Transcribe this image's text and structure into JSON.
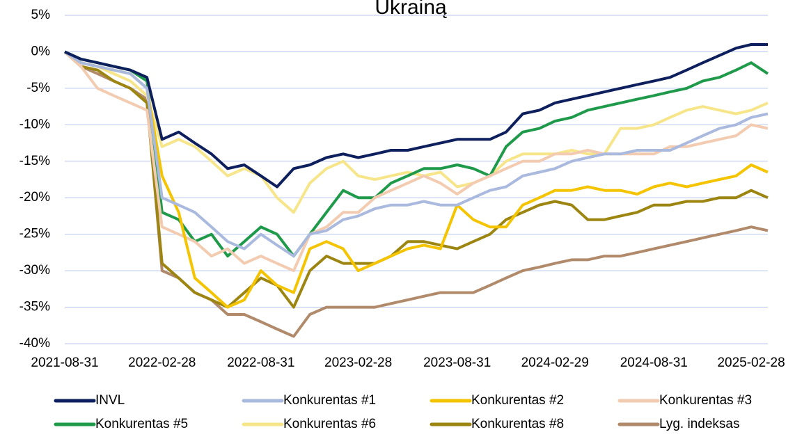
{
  "chart_data": {
    "type": "line",
    "title": "Ukrainą",
    "x": [
      "2021-08-31",
      "2021-09-30",
      "2021-10-31",
      "2021-11-30",
      "2021-12-31",
      "2022-01-31",
      "2022-02-28",
      "2022-03-31",
      "2022-04-30",
      "2022-05-31",
      "2022-06-30",
      "2022-07-31",
      "2022-08-31",
      "2022-09-30",
      "2022-10-31",
      "2022-11-30",
      "2022-12-31",
      "2023-01-31",
      "2023-02-28",
      "2023-03-31",
      "2023-04-30",
      "2023-05-31",
      "2023-06-30",
      "2023-07-31",
      "2023-08-31",
      "2023-09-30",
      "2023-10-31",
      "2023-11-30",
      "2023-12-31",
      "2024-01-31",
      "2024-02-29",
      "2024-03-31",
      "2024-04-30",
      "2024-05-31",
      "2024-06-30",
      "2024-07-31",
      "2024-08-31",
      "2024-09-30",
      "2024-10-31",
      "2024-11-30",
      "2024-12-31",
      "2025-01-31",
      "2025-02-28",
      "2025-03-31"
    ],
    "xlim": [
      "2021-08-31",
      "2025-03-31"
    ],
    "xticks": [
      "2021-08-31",
      "2022-02-28",
      "2022-08-31",
      "2023-02-28",
      "2023-08-31",
      "2024-02-29",
      "2024-08-31",
      "2025-02-28"
    ],
    "ylim": [
      -40,
      5
    ],
    "yticks": [
      {
        "value": -40,
        "label": "-40%"
      },
      {
        "value": -35,
        "label": "-35%"
      },
      {
        "value": -30,
        "label": "-30%"
      },
      {
        "value": -25,
        "label": "-25%"
      },
      {
        "value": -20,
        "label": "-20%"
      },
      {
        "value": -15,
        "label": "-15%"
      },
      {
        "value": -10,
        "label": "-10%"
      },
      {
        "value": -5,
        "label": "-5%"
      },
      {
        "value": 0,
        "label": "0%"
      },
      {
        "value": 5,
        "label": "5%"
      }
    ],
    "grid": true,
    "legend": "bottom",
    "series": [
      {
        "name": "INVL",
        "color": "#0d1f5c",
        "values": [
          0,
          -1,
          -1.5,
          -2,
          -2.5,
          -3.5,
          -12,
          -11,
          -12.5,
          -14,
          -16,
          -15.5,
          -17,
          -18.5,
          -16,
          -15.5,
          -14.5,
          -14,
          -14.5,
          -14,
          -13.5,
          -13.5,
          -13,
          -12.5,
          -12,
          -12,
          -12,
          -11,
          -8.5,
          -8,
          -7,
          -6.5,
          -6,
          -5.5,
          -5,
          -4.5,
          -4,
          -3.5,
          -2.5,
          -1.5,
          -0.5,
          0.5,
          1,
          1
        ]
      },
      {
        "name": "Konkurentas #1",
        "color": "#aab9de",
        "values": [
          0,
          -1.5,
          -2,
          -2.5,
          -3,
          -5,
          -20,
          -21,
          -22,
          -24,
          -26,
          -27,
          -25,
          -26.5,
          -28,
          -25,
          -24.5,
          -23,
          -22.5,
          -21.5,
          -21,
          -21,
          -20.5,
          -21,
          -21,
          -20,
          -19,
          -18.5,
          -17,
          -16.5,
          -16,
          -15,
          -14.5,
          -14,
          -14,
          -13.5,
          -13.5,
          -13.5,
          -12.5,
          -11.5,
          -10.5,
          -10,
          -9,
          -8.5
        ]
      },
      {
        "name": "Konkurentas #2",
        "color": "#f5c400",
        "values": [
          0,
          -1.5,
          -2,
          -2.5,
          -3,
          -5,
          -17,
          -22,
          -31,
          -33,
          -35,
          -34,
          -30,
          -32,
          -33,
          -27,
          -26,
          -27,
          -30,
          -29,
          -28,
          -27,
          -26.5,
          -27,
          -21,
          -23,
          -24,
          -24,
          -21,
          -20,
          -19,
          -19,
          -18.5,
          -19,
          -19,
          -19.5,
          -18.5,
          -18,
          -18.5,
          -18,
          -17.5,
          -17,
          -15.5,
          -16.5
        ]
      },
      {
        "name": "Konkurentas #3",
        "color": "#f2cbb0",
        "values": [
          0,
          -2,
          -5,
          -6,
          -7,
          -8,
          -24,
          -25,
          -26,
          -28,
          -27,
          -29,
          -28,
          -29,
          -30,
          -25,
          -24,
          -22,
          -22,
          -20,
          -19,
          -18,
          -17,
          -18,
          -19.5,
          -18,
          -17,
          -16,
          -15,
          -15,
          -14,
          -14,
          -13.5,
          -14,
          -14,
          -14,
          -14,
          -13,
          -13,
          -12.5,
          -12,
          -11.5,
          -10,
          -10.5
        ]
      },
      {
        "name": "Konkurentas #5",
        "color": "#1e9a4a",
        "values": [
          0,
          -1,
          -1.5,
          -2,
          -2.5,
          -4,
          -22,
          -23,
          -26,
          -25,
          -28,
          -26,
          -24,
          -25,
          -28,
          -25,
          -22,
          -19,
          -20,
          -20,
          -18,
          -17,
          -16,
          -16,
          -15.5,
          -16,
          -17,
          -13,
          -11,
          -10.5,
          -9.5,
          -9,
          -8,
          -7.5,
          -7,
          -6.5,
          -6,
          -5.5,
          -5,
          -4,
          -3.5,
          -2.5,
          -1.5,
          -3
        ]
      },
      {
        "name": "Konkurentas #6",
        "color": "#f7e58a",
        "values": [
          0,
          -1.5,
          -2,
          -3,
          -4,
          -6,
          -13,
          -12,
          -13,
          -15,
          -17,
          -16,
          -17,
          -20,
          -22,
          -18,
          -16,
          -15,
          -17,
          -17.5,
          -17,
          -16.5,
          -17,
          -16.5,
          -18.5,
          -18,
          -17,
          -15,
          -14,
          -14,
          -14,
          -13.5,
          -14,
          -14,
          -10.5,
          -10.5,
          -10,
          -9,
          -8,
          -7.5,
          -8,
          -8.5,
          -8,
          -7
        ]
      },
      {
        "name": "Konkurentas #8",
        "color": "#9c8510",
        "values": [
          0,
          -2,
          -2.5,
          -4,
          -5,
          -7,
          -29,
          -31,
          -33,
          -34,
          -35,
          -33,
          -31,
          -32,
          -35,
          -30,
          -28,
          -29,
          -29,
          -29,
          -28,
          -26,
          -26,
          -26.5,
          -27,
          -26,
          -25,
          -23,
          -22,
          -21,
          -20.5,
          -21,
          -23,
          -23,
          -22.5,
          -22,
          -21,
          -21,
          -20.5,
          -20.5,
          -20,
          -20,
          -19,
          -20
        ]
      },
      {
        "name": "Lyg. indeksas",
        "color": "#b08a6a",
        "values": [
          0,
          -2,
          -3,
          -4,
          -5,
          -6.5,
          -30,
          -31,
          -33,
          -34,
          -36,
          -36,
          -37,
          -38,
          -39,
          -36,
          -35,
          -35,
          -35,
          -35,
          -34.5,
          -34,
          -33.5,
          -33,
          -33,
          -33,
          -32,
          -31,
          -30,
          -29.5,
          -29,
          -28.5,
          -28.5,
          -28,
          -28,
          -27.5,
          -27,
          -26.5,
          -26,
          -25.5,
          -25,
          -24.5,
          -24,
          -24.5
        ]
      }
    ]
  }
}
